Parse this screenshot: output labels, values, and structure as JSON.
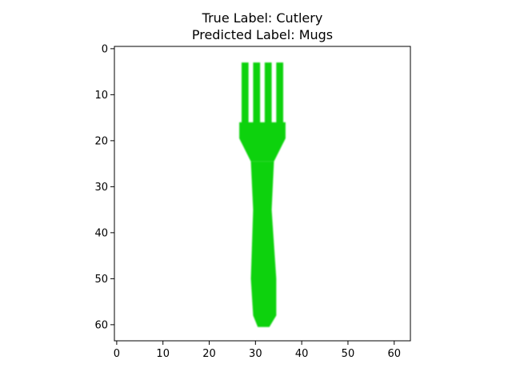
{
  "chart_data": {
    "type": "heatmap",
    "title_lines": [
      "True Label: Cutlery",
      "Predicted Label: Mugs"
    ],
    "image_size": [
      64,
      64
    ],
    "xlim": [
      -0.5,
      63.5
    ],
    "ylim": [
      63.5,
      -0.5
    ],
    "x_ticks": [
      0,
      10,
      20,
      30,
      40,
      50,
      60
    ],
    "y_ticks": [
      0,
      10,
      20,
      30,
      40,
      50,
      60
    ],
    "grid": false,
    "colors": {
      "subject": "#0fd20f",
      "background": "#ffffff",
      "axis": "#000000"
    },
    "subject": "green fork",
    "shape": {
      "tines": [
        {
          "x0": 27.0,
          "x1": 28.5,
          "y0": 3,
          "y1": 17
        },
        {
          "x0": 29.5,
          "x1": 31.0,
          "y0": 3,
          "y1": 17
        },
        {
          "x0": 32.0,
          "x1": 33.5,
          "y0": 3,
          "y1": 17
        },
        {
          "x0": 34.5,
          "x1": 36.0,
          "y0": 3,
          "y1": 17
        }
      ],
      "head": {
        "x0": 26.5,
        "x1": 36.5,
        "y0": 16,
        "y1": 19.5
      },
      "neck": [
        {
          "y": 19.5,
          "x0": 26.5,
          "x1": 36.5
        },
        {
          "y": 24.5,
          "x0": 29.0,
          "x1": 34.0
        }
      ],
      "handle": [
        {
          "y": 24.5,
          "x0": 29.0,
          "x1": 34.0
        },
        {
          "y": 35.0,
          "x0": 29.5,
          "x1": 33.5
        },
        {
          "y": 50.0,
          "x0": 29.0,
          "x1": 34.5
        },
        {
          "y": 58.0,
          "x0": 29.5,
          "x1": 34.5
        },
        {
          "y": 60.5,
          "x0": 30.5,
          "x1": 33.0
        }
      ]
    }
  }
}
